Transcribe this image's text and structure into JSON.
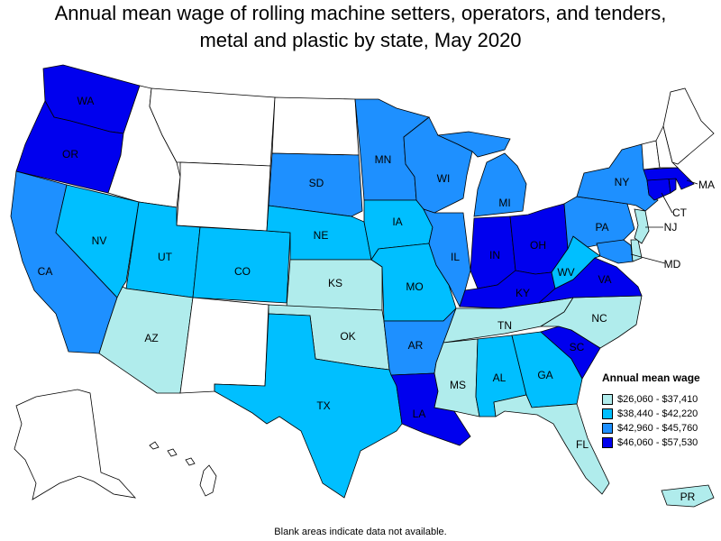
{
  "title_line1": "Annual mean wage of rolling machine setters, operators, and tenders,",
  "title_line2": "metal and plastic by state, May 2020",
  "legend": {
    "title": "Annual mean wage",
    "items": [
      {
        "label": "$26,060 - $37,410",
        "color": "#b0ecec"
      },
      {
        "label": "$38,440 - $42,220",
        "color": "#00bfff"
      },
      {
        "label": "$42,960 - $45,760",
        "color": "#1e90ff"
      },
      {
        "label": "$46,060 - $57,530",
        "color": "#0000ee"
      }
    ]
  },
  "no_data_color": "#ffffff",
  "footnote": "Blank areas indicate data not available.",
  "states": [
    {
      "abbr": "WA",
      "tier": 4
    },
    {
      "abbr": "OR",
      "tier": 4
    },
    {
      "abbr": "CA",
      "tier": 3
    },
    {
      "abbr": "NV",
      "tier": 2
    },
    {
      "abbr": "UT",
      "tier": 2
    },
    {
      "abbr": "AZ",
      "tier": 1
    },
    {
      "abbr": "CO",
      "tier": 2
    },
    {
      "abbr": "SD",
      "tier": 3
    },
    {
      "abbr": "NE",
      "tier": 2
    },
    {
      "abbr": "KS",
      "tier": 1
    },
    {
      "abbr": "OK",
      "tier": 1
    },
    {
      "abbr": "TX",
      "tier": 2
    },
    {
      "abbr": "MN",
      "tier": 3
    },
    {
      "abbr": "IA",
      "tier": 2
    },
    {
      "abbr": "MO",
      "tier": 2
    },
    {
      "abbr": "AR",
      "tier": 3
    },
    {
      "abbr": "LA",
      "tier": 4
    },
    {
      "abbr": "WI",
      "tier": 3
    },
    {
      "abbr": "IL",
      "tier": 3
    },
    {
      "abbr": "MS",
      "tier": 1
    },
    {
      "abbr": "MI",
      "tier": 3
    },
    {
      "abbr": "IN",
      "tier": 4
    },
    {
      "abbr": "OH",
      "tier": 4
    },
    {
      "abbr": "KY",
      "tier": 4
    },
    {
      "abbr": "TN",
      "tier": 1
    },
    {
      "abbr": "AL",
      "tier": 2
    },
    {
      "abbr": "GA",
      "tier": 2
    },
    {
      "abbr": "FL",
      "tier": 1
    },
    {
      "abbr": "SC",
      "tier": 4
    },
    {
      "abbr": "NC",
      "tier": 1
    },
    {
      "abbr": "VA",
      "tier": 4
    },
    {
      "abbr": "WV",
      "tier": 2
    },
    {
      "abbr": "PA",
      "tier": 3
    },
    {
      "abbr": "NY",
      "tier": 3
    },
    {
      "abbr": "MD",
      "tier": 3
    },
    {
      "abbr": "NJ",
      "tier": 1
    },
    {
      "abbr": "CT",
      "tier": 4
    },
    {
      "abbr": "MA",
      "tier": 4
    },
    {
      "abbr": "PR",
      "tier": 1
    },
    {
      "abbr": "MT",
      "tier": 0
    },
    {
      "abbr": "ID",
      "tier": 0
    },
    {
      "abbr": "WY",
      "tier": 0
    },
    {
      "abbr": "ND",
      "tier": 0
    },
    {
      "abbr": "NM",
      "tier": 0
    },
    {
      "abbr": "ME",
      "tier": 0
    },
    {
      "abbr": "NH",
      "tier": 0
    },
    {
      "abbr": "VT",
      "tier": 0
    },
    {
      "abbr": "RI",
      "tier": 4
    },
    {
      "abbr": "DE",
      "tier": 1
    },
    {
      "abbr": "AK",
      "tier": 0
    },
    {
      "abbr": "HI",
      "tier": 0
    }
  ]
}
